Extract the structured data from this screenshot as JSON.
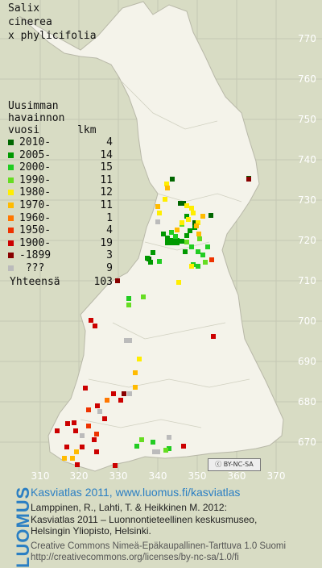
{
  "species": {
    "line1": "Salix",
    "line2": "cinerea",
    "line3": "x phylicifolia"
  },
  "legend": {
    "header": [
      "Uusimman",
      "havainnon",
      "vuosi      lkm"
    ],
    "rows": [
      {
        "year": "2010-",
        "count": "4",
        "color": "#006600"
      },
      {
        "year": "2005-",
        "count": "14",
        "color": "#009900"
      },
      {
        "year": "2000-",
        "count": "15",
        "color": "#22cc22"
      },
      {
        "year": "1990-",
        "count": "11",
        "color": "#66dd22"
      },
      {
        "year": "1980-",
        "count": "12",
        "color": "#ffee00"
      },
      {
        "year": "1970-",
        "count": "11",
        "color": "#ffbb00"
      },
      {
        "year": "1960-",
        "count": "1",
        "color": "#ff7700"
      },
      {
        "year": "1950-",
        "count": "4",
        "color": "#ee3300"
      },
      {
        "year": "1900-",
        "count": "19",
        "color": "#cc0000"
      },
      {
        "year": "-1899",
        "count": "3",
        "color": "#880000"
      },
      {
        "year": " ???",
        "count": "9",
        "color": "#bbbbbb"
      }
    ],
    "total_label": "Yhteensä",
    "total_value": "103"
  },
  "axes": {
    "y_ticks": [
      "770",
      "760",
      "750",
      "740",
      "730",
      "720",
      "710",
      "700",
      "690",
      "680",
      "670"
    ],
    "x_ticks": [
      "310",
      "320",
      "330",
      "340",
      "350",
      "360",
      "370"
    ]
  },
  "colors": {
    "land": "#f4f3ea",
    "background": "#d8dcc4",
    "grid": "#bfc2ae",
    "tick_label": "#ffffff",
    "accent": "#2b7fc3"
  },
  "license_badge": "BY-NC-SA",
  "footer": {
    "brand": "LUOMUS",
    "title": "Kasviatlas 2011, www.luomus.fi/kasviatlas",
    "citation_line1": "Lamppinen, R., Lahti, T. & Heikkinen M. 2012:",
    "citation_line2": "Kasviatlas 2011 – Luonnontieteellinen keskusmuseo,",
    "citation_line3": "Helsingin Yliopisto, Helsinki.",
    "license_line1": "Creative Commons Nimeä-Epäkaupallinen-Tarttuva 1.0 Suomi",
    "license_line2": "http://creativecommons.org/licenses/by-nc-sa/1.0/fi"
  }
}
